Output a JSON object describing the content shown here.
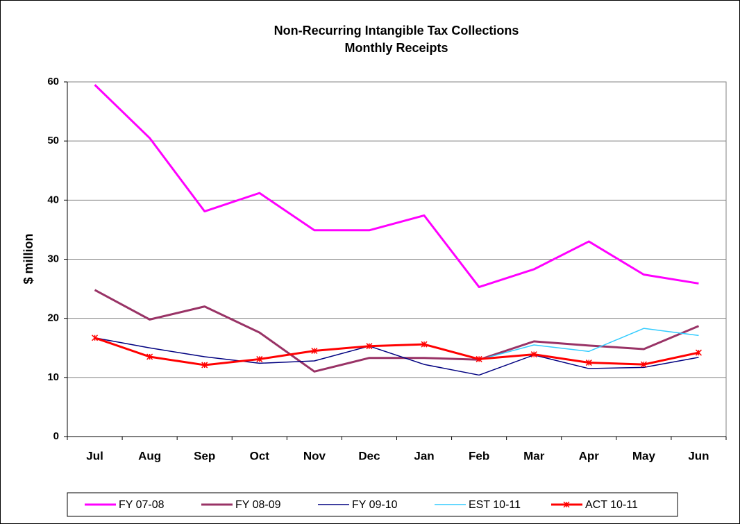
{
  "chart_data": {
    "type": "line",
    "title": "Non-Recurring Intangible Tax Collections",
    "subtitle": "Monthly Receipts",
    "y_label": "$ million",
    "categories": [
      "Jul",
      "Aug",
      "Sep",
      "Oct",
      "Nov",
      "Dec",
      "Jan",
      "Feb",
      "Mar",
      "Apr",
      "May",
      "Jun"
    ],
    "series": [
      {
        "name": "FY 07-08",
        "color": "#ff00ff",
        "values": [
          59.5,
          50.5,
          38.1,
          41.2,
          34.9,
          34.9,
          37.4,
          25.3,
          28.3,
          33.0,
          27.4,
          25.9
        ]
      },
      {
        "name": "FY 08-09",
        "color": "#993366",
        "values": [
          24.8,
          19.8,
          22.0,
          17.6,
          11.0,
          13.3,
          13.3,
          13.0,
          16.1,
          15.4,
          14.8,
          18.7
        ]
      },
      {
        "name": "FY 09-10",
        "color": "#000080",
        "values": [
          16.7,
          15.0,
          13.5,
          12.4,
          12.8,
          15.3,
          12.2,
          10.4,
          13.8,
          11.5,
          11.7,
          13.4
        ]
      },
      {
        "name": "EST 10-11",
        "color": "#33ccff",
        "values": [
          null,
          null,
          null,
          null,
          null,
          null,
          null,
          13.0,
          15.5,
          14.4,
          18.3,
          17.1
        ]
      },
      {
        "name": "ACT 10-11",
        "color": "#ff0000",
        "values": [
          16.7,
          13.5,
          12.1,
          13.1,
          14.5,
          15.3,
          15.6,
          13.1,
          13.9,
          12.5,
          12.2,
          14.2
        ]
      }
    ],
    "ylim": [
      0,
      60
    ],
    "yticks": [
      0,
      10,
      20,
      30,
      40,
      50,
      60
    ],
    "grid": true,
    "legend": "bottom"
  }
}
